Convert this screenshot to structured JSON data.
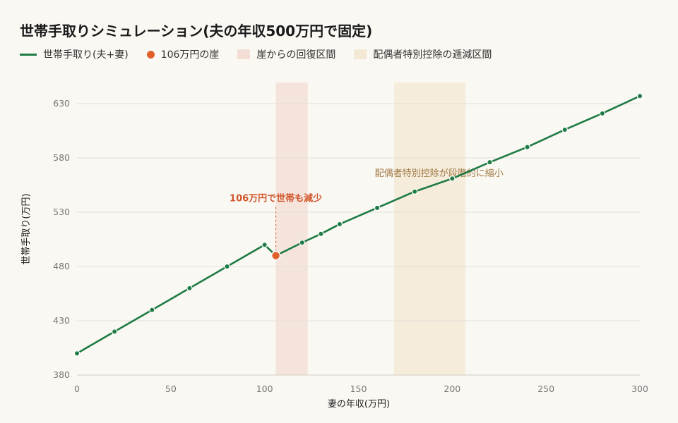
{
  "chart_data": {
    "type": "line",
    "title": "世帯手取りシミュレーション(夫の年収500万円で固定)",
    "xlabel": "妻の年収(万円)",
    "ylabel": "世帯手取り(万円)",
    "xlim": [
      0,
      300
    ],
    "ylim": [
      380,
      645
    ],
    "xticks": [
      0,
      50,
      100,
      150,
      200,
      250,
      300
    ],
    "yticks": [
      380,
      430,
      480,
      530,
      580,
      630
    ],
    "grid": "horizontal",
    "legend_position": "top-left",
    "series": [
      {
        "name": "世帯手取り(夫+妻)",
        "color": "#1e7b45",
        "x": [
          0,
          20,
          40,
          60,
          80,
          100,
          106,
          120,
          130,
          140,
          160,
          180,
          200,
          220,
          240,
          260,
          280,
          300
        ],
        "y": [
          400,
          420,
          440,
          460,
          480,
          500,
          490,
          502,
          510,
          519,
          534,
          549,
          561,
          576,
          590,
          606,
          621,
          637
        ]
      }
    ],
    "cliff_point": {
      "name": "106万円の崖",
      "x": 106,
      "y": 490,
      "color": "#e0602a"
    },
    "bands": [
      {
        "name": "崖からの回復区間",
        "x_from": 106,
        "x_to": 123,
        "color": "#f3ddd4"
      },
      {
        "name": "配偶者特別控除の逓減区間",
        "x_from": 169,
        "x_to": 207,
        "color": "#f3e8d3"
      }
    ],
    "annotations": [
      {
        "text": "106万円で世帯も減少",
        "x": 106,
        "y": 540,
        "style": "red"
      },
      {
        "text": "配偶者特別控除が段階的に縮小",
        "x": 193,
        "y": 563,
        "style": "brown"
      }
    ]
  }
}
